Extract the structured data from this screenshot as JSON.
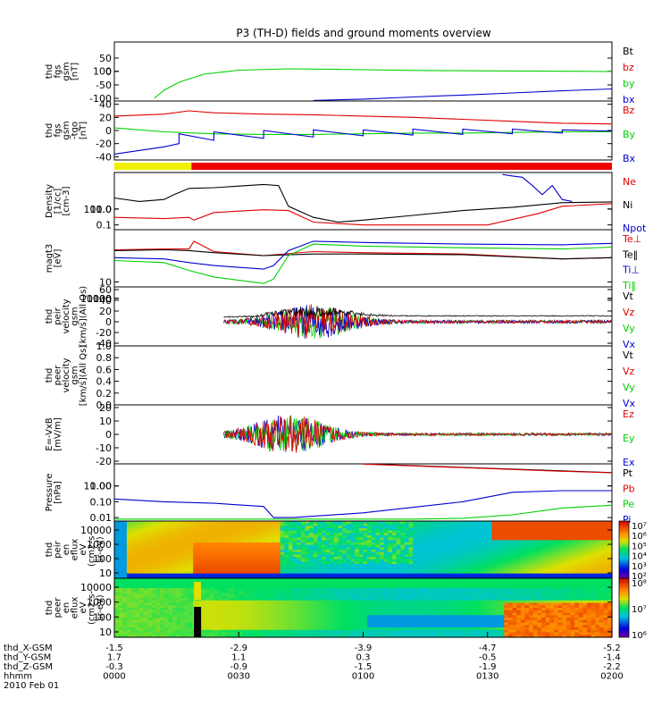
{
  "title": "P3 (TH-D) fields and ground moments overview",
  "colors": {
    "black": "#000000",
    "red": "#e00000",
    "green": "#00d000",
    "blue": "#0000d0",
    "yellow": "#f0f000",
    "barred": "#f00000"
  },
  "time_axis": {
    "ticks": [
      "0000",
      "0030",
      "0100",
      "0130",
      "0200"
    ],
    "rows": [
      {
        "label": "thd_X-GSM",
        "values": [
          "-1.5",
          "-2.9",
          "-3.9",
          "-4.7",
          "-5.2"
        ]
      },
      {
        "label": "thd_Y-GSM",
        "values": [
          "1.7",
          "1.1",
          "0.3",
          "-0.5",
          "-1.4"
        ]
      },
      {
        "label": "thd_Z-GSM",
        "values": [
          "-0.3",
          "-0.9",
          "-1.5",
          "-1.9",
          "-2.2"
        ]
      },
      {
        "label": "hhmm",
        "values": [
          "0000",
          "0030",
          "0100",
          "0130",
          "0200"
        ]
      }
    ],
    "date": "2010 Feb 01"
  },
  "chart_data": [
    {
      "type": "line",
      "id": "fgs-gsm",
      "ylabel": [
        "thd",
        "fgs",
        "gsm",
        "[nT]"
      ],
      "yticks": [
        "100",
        "50",
        "0",
        "-50",
        "-100"
      ],
      "ylim": [
        -110,
        110
      ],
      "legend": [
        {
          "name": "Bt",
          "color": "black"
        },
        {
          "name": "bz",
          "color": "red"
        },
        {
          "name": "by",
          "color": "green"
        },
        {
          "name": "bx",
          "color": "blue"
        }
      ],
      "series": [
        {
          "name": "by",
          "color": "green",
          "x": [
            0.08,
            0.1,
            0.13,
            0.18,
            0.25,
            0.35,
            0.45,
            0.6,
            0.8,
            1.0
          ],
          "y": [
            -100,
            -70,
            -40,
            -10,
            5,
            10,
            8,
            4,
            2,
            0
          ]
        },
        {
          "name": "bx",
          "color": "blue",
          "x": [
            0.4,
            0.5,
            0.6,
            0.7,
            0.8,
            0.9,
            1.0
          ],
          "y": [
            -108,
            -103,
            -95,
            -88,
            -80,
            -72,
            -65
          ]
        }
      ]
    },
    {
      "type": "line",
      "id": "fgs-gsm-detrended",
      "ylabel": [
        "thd",
        "fgs",
        "gsm",
        "-tgo",
        "[nT]"
      ],
      "yticks": [
        "40",
        "20",
        "0",
        "-20",
        "-40"
      ],
      "ylim": [
        -45,
        45
      ],
      "legend": [
        {
          "name": "Bz",
          "color": "red"
        },
        {
          "name": "By",
          "color": "green"
        },
        {
          "name": "Bx",
          "color": "blue"
        }
      ],
      "series": [
        {
          "name": "Bz",
          "color": "red",
          "x": [
            0.0,
            0.1,
            0.15,
            0.2,
            0.3,
            0.4,
            0.5,
            0.6,
            0.7,
            0.8,
            0.9,
            1.0
          ],
          "y": [
            22,
            25,
            30,
            27,
            25,
            24,
            22,
            20,
            17,
            14,
            11,
            10
          ]
        },
        {
          "name": "By",
          "color": "green",
          "x": [
            0.0,
            0.1,
            0.2,
            0.3,
            0.4,
            0.5,
            0.6,
            0.7,
            0.8,
            0.9,
            1.0
          ],
          "y": [
            4,
            -2,
            -5,
            -6,
            -6,
            -5,
            -4,
            -4,
            -3,
            -2,
            -2
          ]
        },
        {
          "name": "Bx",
          "color": "blue",
          "x": [
            0.0,
            0.1,
            0.13,
            0.13,
            0.2,
            0.2,
            0.3,
            0.3,
            0.4,
            0.4,
            0.5,
            0.5,
            0.6,
            0.6,
            0.7,
            0.7,
            0.8,
            0.8,
            0.9,
            0.9,
            1.0
          ],
          "y": [
            -36,
            -25,
            -20,
            -5,
            -15,
            -2,
            -12,
            0,
            -10,
            1,
            -8,
            1,
            -7,
            2,
            -6,
            2,
            -5,
            2,
            -4,
            1,
            -1
          ]
        }
      ]
    },
    {
      "type": "bar",
      "id": "mode-bar",
      "segments": [
        {
          "x0": 0.0,
          "x1": 0.155,
          "color": "yellow"
        },
        {
          "x0": 0.155,
          "x1": 1.0,
          "color": "barred"
        }
      ]
    },
    {
      "type": "line",
      "id": "density",
      "ylog": true,
      "ylabel": [
        "Density",
        "[1/cc]",
        "[cm-3]"
      ],
      "yticks": [
        "100.0",
        "10.0",
        "1.0",
        "0.1"
      ],
      "ylim": [
        0.05,
        200
      ],
      "legend": [
        {
          "name": "Ne",
          "color": "red"
        },
        {
          "name": "Ni",
          "color": "black"
        },
        {
          "name": "Npot",
          "color": "blue"
        }
      ],
      "series": [
        {
          "name": "Ni",
          "color": "black",
          "x": [
            0.0,
            0.05,
            0.1,
            0.12,
            0.15,
            0.2,
            0.3,
            0.33,
            0.35,
            0.4,
            0.45,
            0.5,
            0.6,
            0.7,
            0.8,
            0.9,
            1.0
          ],
          "y": [
            5,
            3,
            4,
            8,
            20,
            22,
            35,
            30,
            1.5,
            0.3,
            0.15,
            0.2,
            0.4,
            0.8,
            1.3,
            2.5,
            2.8
          ]
        },
        {
          "name": "Ne",
          "color": "red",
          "x": [
            0.0,
            0.1,
            0.15,
            0.16,
            0.2,
            0.3,
            0.35,
            0.4,
            0.5,
            0.6,
            0.7,
            0.75,
            0.85,
            0.9,
            1.0
          ],
          "y": [
            0.3,
            0.25,
            0.3,
            0.2,
            0.6,
            0.9,
            0.8,
            0.15,
            0.1,
            0.1,
            0.1,
            0.1,
            0.5,
            1.5,
            2.2
          ]
        },
        {
          "name": "Npot",
          "color": "blue",
          "x": [
            0.78,
            0.8,
            0.82,
            0.84,
            0.86,
            0.88,
            0.9,
            0.92
          ],
          "y": [
            150,
            120,
            100,
            30,
            8,
            30,
            4,
            3
          ]
        }
      ]
    },
    {
      "type": "line",
      "id": "temperature",
      "ylog": true,
      "ylabel": [
        "magt3",
        "[eV]"
      ],
      "yticks": [
        "10000",
        "1000",
        "100",
        "10"
      ],
      "ylim": [
        5,
        15000
      ],
      "legend": [
        {
          "name": "Te⊥",
          "color": "red"
        },
        {
          "name": "Te‖",
          "color": "black"
        },
        {
          "name": "Ti⊥",
          "color": "blue"
        },
        {
          "name": "Ti‖",
          "color": "green"
        }
      ],
      "series": [
        {
          "name": "Te⊥",
          "color": "red",
          "x": [
            0.0,
            0.1,
            0.15,
            0.16,
            0.2,
            0.3,
            0.4,
            0.5,
            0.7,
            0.9,
            1.0
          ],
          "y": [
            900,
            1000,
            1000,
            3000,
            700,
            400,
            700,
            600,
            500,
            250,
            300
          ]
        },
        {
          "name": "Te‖",
          "color": "black",
          "x": [
            0.0,
            0.1,
            0.15,
            0.2,
            0.3,
            0.4,
            0.5,
            0.7,
            0.9,
            1.0
          ],
          "y": [
            800,
            900,
            800,
            600,
            400,
            500,
            500,
            450,
            250,
            300
          ]
        },
        {
          "name": "Ti⊥",
          "color": "blue",
          "x": [
            0.0,
            0.1,
            0.15,
            0.2,
            0.3,
            0.32,
            0.35,
            0.4,
            0.5,
            0.7,
            0.9,
            1.0
          ],
          "y": [
            300,
            250,
            150,
            100,
            60,
            100,
            800,
            3000,
            2500,
            2000,
            1800,
            2200
          ]
        },
        {
          "name": "Ti‖",
          "color": "green",
          "x": [
            0.0,
            0.1,
            0.15,
            0.2,
            0.3,
            0.32,
            0.35,
            0.4,
            0.5,
            0.7,
            0.9,
            1.0
          ],
          "y": [
            200,
            150,
            50,
            20,
            8,
            15,
            400,
            2000,
            1500,
            1200,
            1000,
            1300
          ]
        }
      ]
    },
    {
      "type": "line",
      "id": "peir-velocity",
      "ylabel": [
        "thd",
        "peir",
        "velocity",
        "gsm",
        "[km/s](All Qs)"
      ],
      "yticks": [
        "60",
        "40",
        "20",
        "0",
        "-20",
        "-40"
      ],
      "ylim": [
        -45,
        65
      ],
      "legend": [
        {
          "name": "Vt",
          "color": "black"
        },
        {
          "name": "Vz",
          "color": "red"
        },
        {
          "name": "Vy",
          "color": "green"
        },
        {
          "name": "Vx",
          "color": "blue"
        }
      ],
      "noise": {
        "x0": 0.22,
        "x1": 1.0,
        "peak_x": 0.4,
        "peak_amp": 30,
        "base_amp": 3
      }
    },
    {
      "type": "line",
      "id": "peer-velocity",
      "ylabel": [
        "thd",
        "peer",
        "velocity",
        "gsm",
        "[km/s](All Qs)"
      ],
      "yticks": [
        "1.0",
        "0.8",
        "0.6",
        "0.4",
        "0.2",
        "0.0"
      ],
      "ylim": [
        0,
        1
      ],
      "legend": [
        {
          "name": "Vt",
          "color": "black"
        },
        {
          "name": "Vz",
          "color": "red"
        },
        {
          "name": "Vy",
          "color": "green"
        },
        {
          "name": "Vx",
          "color": "blue"
        }
      ],
      "series": []
    },
    {
      "type": "line",
      "id": "e-field",
      "ylabel": [
        "E=-VxB",
        "[mV/m]"
      ],
      "yticks": [
        "20",
        "10",
        "0",
        "-10",
        "-20"
      ],
      "ylim": [
        -22,
        22
      ],
      "legend": [
        {
          "name": "Ez",
          "color": "red"
        },
        {
          "name": "Ey",
          "color": "green"
        },
        {
          "name": "Ex",
          "color": "blue"
        }
      ],
      "noise": {
        "x0": 0.22,
        "x1": 1.0,
        "peak_x": 0.35,
        "peak_amp": 14,
        "base_amp": 1
      }
    },
    {
      "type": "line",
      "id": "pressure",
      "ylog": true,
      "ylabel": [
        "Pressure",
        "[nPa]"
      ],
      "yticks": [
        "10.00",
        "1.00",
        "0.10",
        "0.01"
      ],
      "ylim": [
        0.006,
        25
      ],
      "legend": [
        {
          "name": "Pt",
          "color": "black"
        },
        {
          "name": "Pb",
          "color": "red"
        },
        {
          "name": "Pe",
          "color": "green"
        },
        {
          "name": "Pi",
          "color": "blue"
        }
      ],
      "series": [
        {
          "name": "Pt",
          "color": "black",
          "x": [
            0.5,
            0.7,
            0.9,
            1.0
          ],
          "y": [
            25,
            15,
            9,
            7
          ]
        },
        {
          "name": "Pb",
          "color": "red",
          "x": [
            0.5,
            0.7,
            0.9,
            1.0
          ],
          "y": [
            24,
            14.5,
            8.5,
            6.8
          ]
        },
        {
          "name": "Pi",
          "color": "blue",
          "x": [
            0.0,
            0.1,
            0.2,
            0.3,
            0.32,
            0.36,
            0.5,
            0.7,
            0.8,
            0.9,
            1.0
          ],
          "y": [
            0.15,
            0.1,
            0.08,
            0.05,
            0.01,
            0.01,
            0.02,
            0.1,
            0.4,
            0.5,
            0.5
          ]
        },
        {
          "name": "Pe",
          "color": "green",
          "x": [
            0.0,
            0.3,
            0.35,
            0.6,
            0.7,
            0.8,
            0.9,
            1.0
          ],
          "y": [
            0.008,
            0.008,
            0.008,
            0.008,
            0.009,
            0.015,
            0.04,
            0.06
          ]
        }
      ]
    },
    {
      "type": "heatmap",
      "id": "peir-eflux",
      "ylabel": [
        "thd",
        "peir",
        "en",
        "eflux",
        "eV",
        "(cm2-s-",
        "sr-eV)"
      ],
      "yticks": [
        "10000",
        "1000",
        "100",
        "10"
      ],
      "colorbar": [
        "10⁷",
        "10⁶",
        "10⁵",
        "10⁴",
        "10³",
        "10²"
      ]
    },
    {
      "type": "heatmap",
      "id": "peer-eflux",
      "ylabel": [
        "thd",
        "peer",
        "en",
        "eflux",
        "eV",
        "(cm2-s-",
        "sr-eV)"
      ],
      "yticks": [
        "10000",
        "1000",
        "100",
        "10"
      ],
      "colorbar": [
        "10⁸",
        "10⁷",
        "10⁶"
      ]
    }
  ]
}
